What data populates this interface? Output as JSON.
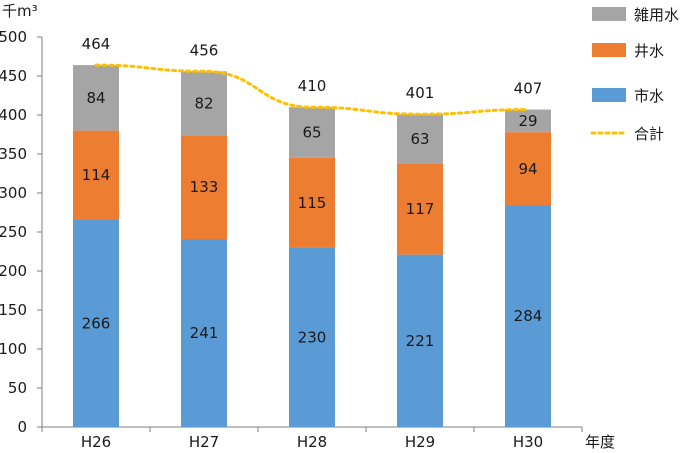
{
  "chart_data": {
    "type": "bar",
    "stacked": true,
    "categories": [
      "H26",
      "H27",
      "H28",
      "H29",
      "H30"
    ],
    "series": [
      {
        "name": "市水",
        "values": [
          266,
          241,
          230,
          221,
          284
        ],
        "color": "#5B9BD5"
      },
      {
        "name": "井水",
        "values": [
          114,
          133,
          115,
          117,
          94
        ],
        "color": "#ED7D31"
      },
      {
        "name": "雑用水",
        "values": [
          84,
          82,
          65,
          63,
          29
        ],
        "color": "#A5A5A5"
      }
    ],
    "line": {
      "name": "合計",
      "values": [
        464,
        456,
        410,
        401,
        407
      ],
      "color": "#FFC000",
      "style": "dotted"
    },
    "title": "",
    "xlabel": "年度",
    "ylabel": "千m³",
    "ylim": [
      0,
      500
    ],
    "yticks": [
      0,
      50,
      100,
      150,
      200,
      250,
      300,
      350,
      400,
      450,
      500
    ],
    "grid": false,
    "legend_position": "right"
  }
}
